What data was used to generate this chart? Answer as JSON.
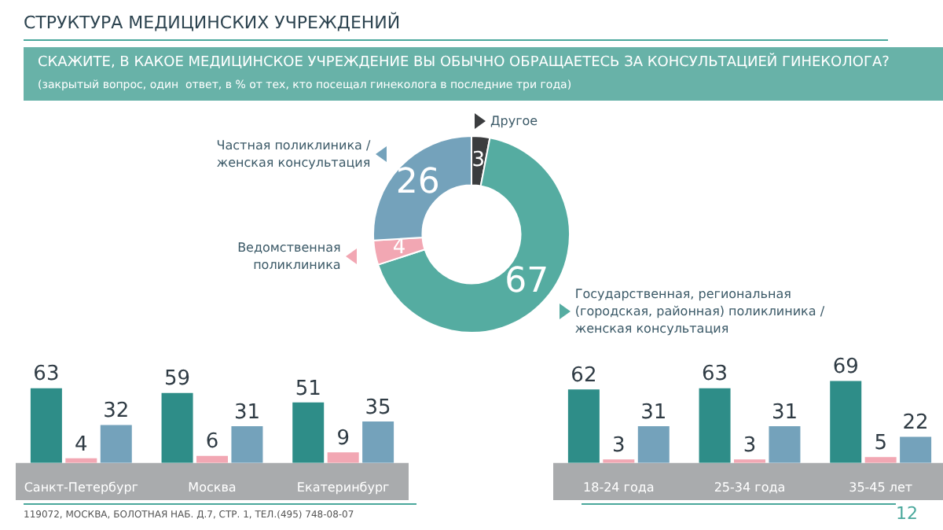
{
  "chart_data": [
    {
      "type": "donut",
      "title": "СТРУКТУРА МЕДИЦИНСКИХ УЧРЕЖДЕНИЙ",
      "subtitle": "СКАЖИТЕ, В КАКОЕ МЕДИЦИНСКОЕ УЧРЕЖДЕНИЕ ВЫ ОБЫЧНО ОБРАЩАЕТЕСЬ ЗА КОНСУЛЬТАЦИЕЙ ГИНЕКОЛОГА?",
      "annotations": [
        "(закрытый вопрос, один  ответ, в % от тех, кто посещал гинеколога в последние три года)",
        "119072, МОСКВА, БОЛОТНАЯ НАБ. Д.7, СТР. 1, ТЕЛ.(495) 748-08-07",
        "12"
      ],
      "categories": [
        "Другое",
        "Государственная, региональная (городская, районная) поликлиника / женская консультация",
        "Ведомственная поликлиника",
        "Частная поликлиника / женская консультация"
      ],
      "values": [
        3,
        67,
        4,
        26
      ],
      "colors": [
        "#3b3d3f",
        "#55aca1",
        "#f2a7b3",
        "#74a2bb"
      ],
      "data_labels": true
    },
    {
      "type": "bar",
      "categories": [
        "Санкт-Петербург",
        "Москва",
        "Екатеринбург"
      ],
      "data_labels": true,
      "series": [
        {
          "color": "#2e8d88",
          "values": [
            63,
            59,
            51
          ]
        },
        {
          "color": "#f2a7b3",
          "values": [
            4,
            6,
            9
          ]
        },
        {
          "color": "#74a2bb",
          "values": [
            32,
            31,
            35
          ]
        }
      ]
    },
    {
      "type": "bar",
      "categories": [
        "18-24 года",
        "25-34 года",
        "35-45 лет"
      ],
      "data_labels": true,
      "series": [
        {
          "color": "#2e8d88",
          "values": [
            62,
            63,
            69
          ]
        },
        {
          "color": "#f2a7b3",
          "values": [
            3,
            3,
            5
          ]
        },
        {
          "color": "#74a2bb",
          "values": [
            31,
            31,
            22
          ]
        }
      ]
    }
  ]
}
